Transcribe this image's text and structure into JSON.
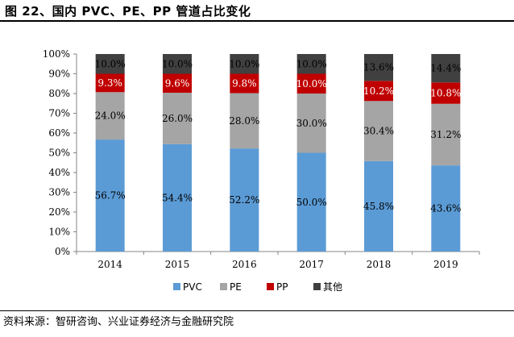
{
  "figure": {
    "title": "图 22、国内 PVC、PE、PP 管道占比变化",
    "source": "资料来源：智研咨询、兴业证券经济与金融研究院"
  },
  "colors": {
    "PVC": "#5b9bd5",
    "PE": "#a5a5a5",
    "PP": "#c00000",
    "其他": "#404040"
  },
  "chart_data": {
    "type": "bar",
    "stacked": true,
    "percent_stacked": true,
    "categories": [
      "2014",
      "2015",
      "2016",
      "2017",
      "2018",
      "2019"
    ],
    "series": [
      {
        "name": "PVC",
        "values": [
          56.7,
          54.4,
          52.2,
          50.0,
          45.8,
          43.6
        ],
        "labels": [
          "56.7%",
          "54.4%",
          "52.2%",
          "50.0%",
          "45.8%",
          "43.6%"
        ]
      },
      {
        "name": "PE",
        "values": [
          24.0,
          26.0,
          28.0,
          30.0,
          30.4,
          31.2
        ],
        "labels": [
          "24.0%",
          "26.0%",
          "28.0%",
          "30.0%",
          "30.4%",
          "31.2%"
        ]
      },
      {
        "name": "PP",
        "values": [
          9.3,
          9.6,
          9.8,
          10.0,
          10.2,
          10.8
        ],
        "labels": [
          "9.3%",
          "9.6%",
          "9.8%",
          "10.0%",
          "10.2%",
          "10.8%"
        ]
      },
      {
        "name": "其他",
        "values": [
          10.0,
          10.0,
          10.0,
          10.0,
          13.6,
          14.4
        ],
        "labels": [
          "10.0%",
          "10.0%",
          "10.0%",
          "10.0%",
          "13.6%",
          "14.4%"
        ]
      }
    ],
    "yticks": [
      "0%",
      "10%",
      "20%",
      "30%",
      "40%",
      "50%",
      "60%",
      "70%",
      "80%",
      "90%",
      "100%"
    ],
    "ylim": [
      0,
      100
    ],
    "grid": false,
    "legend_position": "bottom"
  }
}
